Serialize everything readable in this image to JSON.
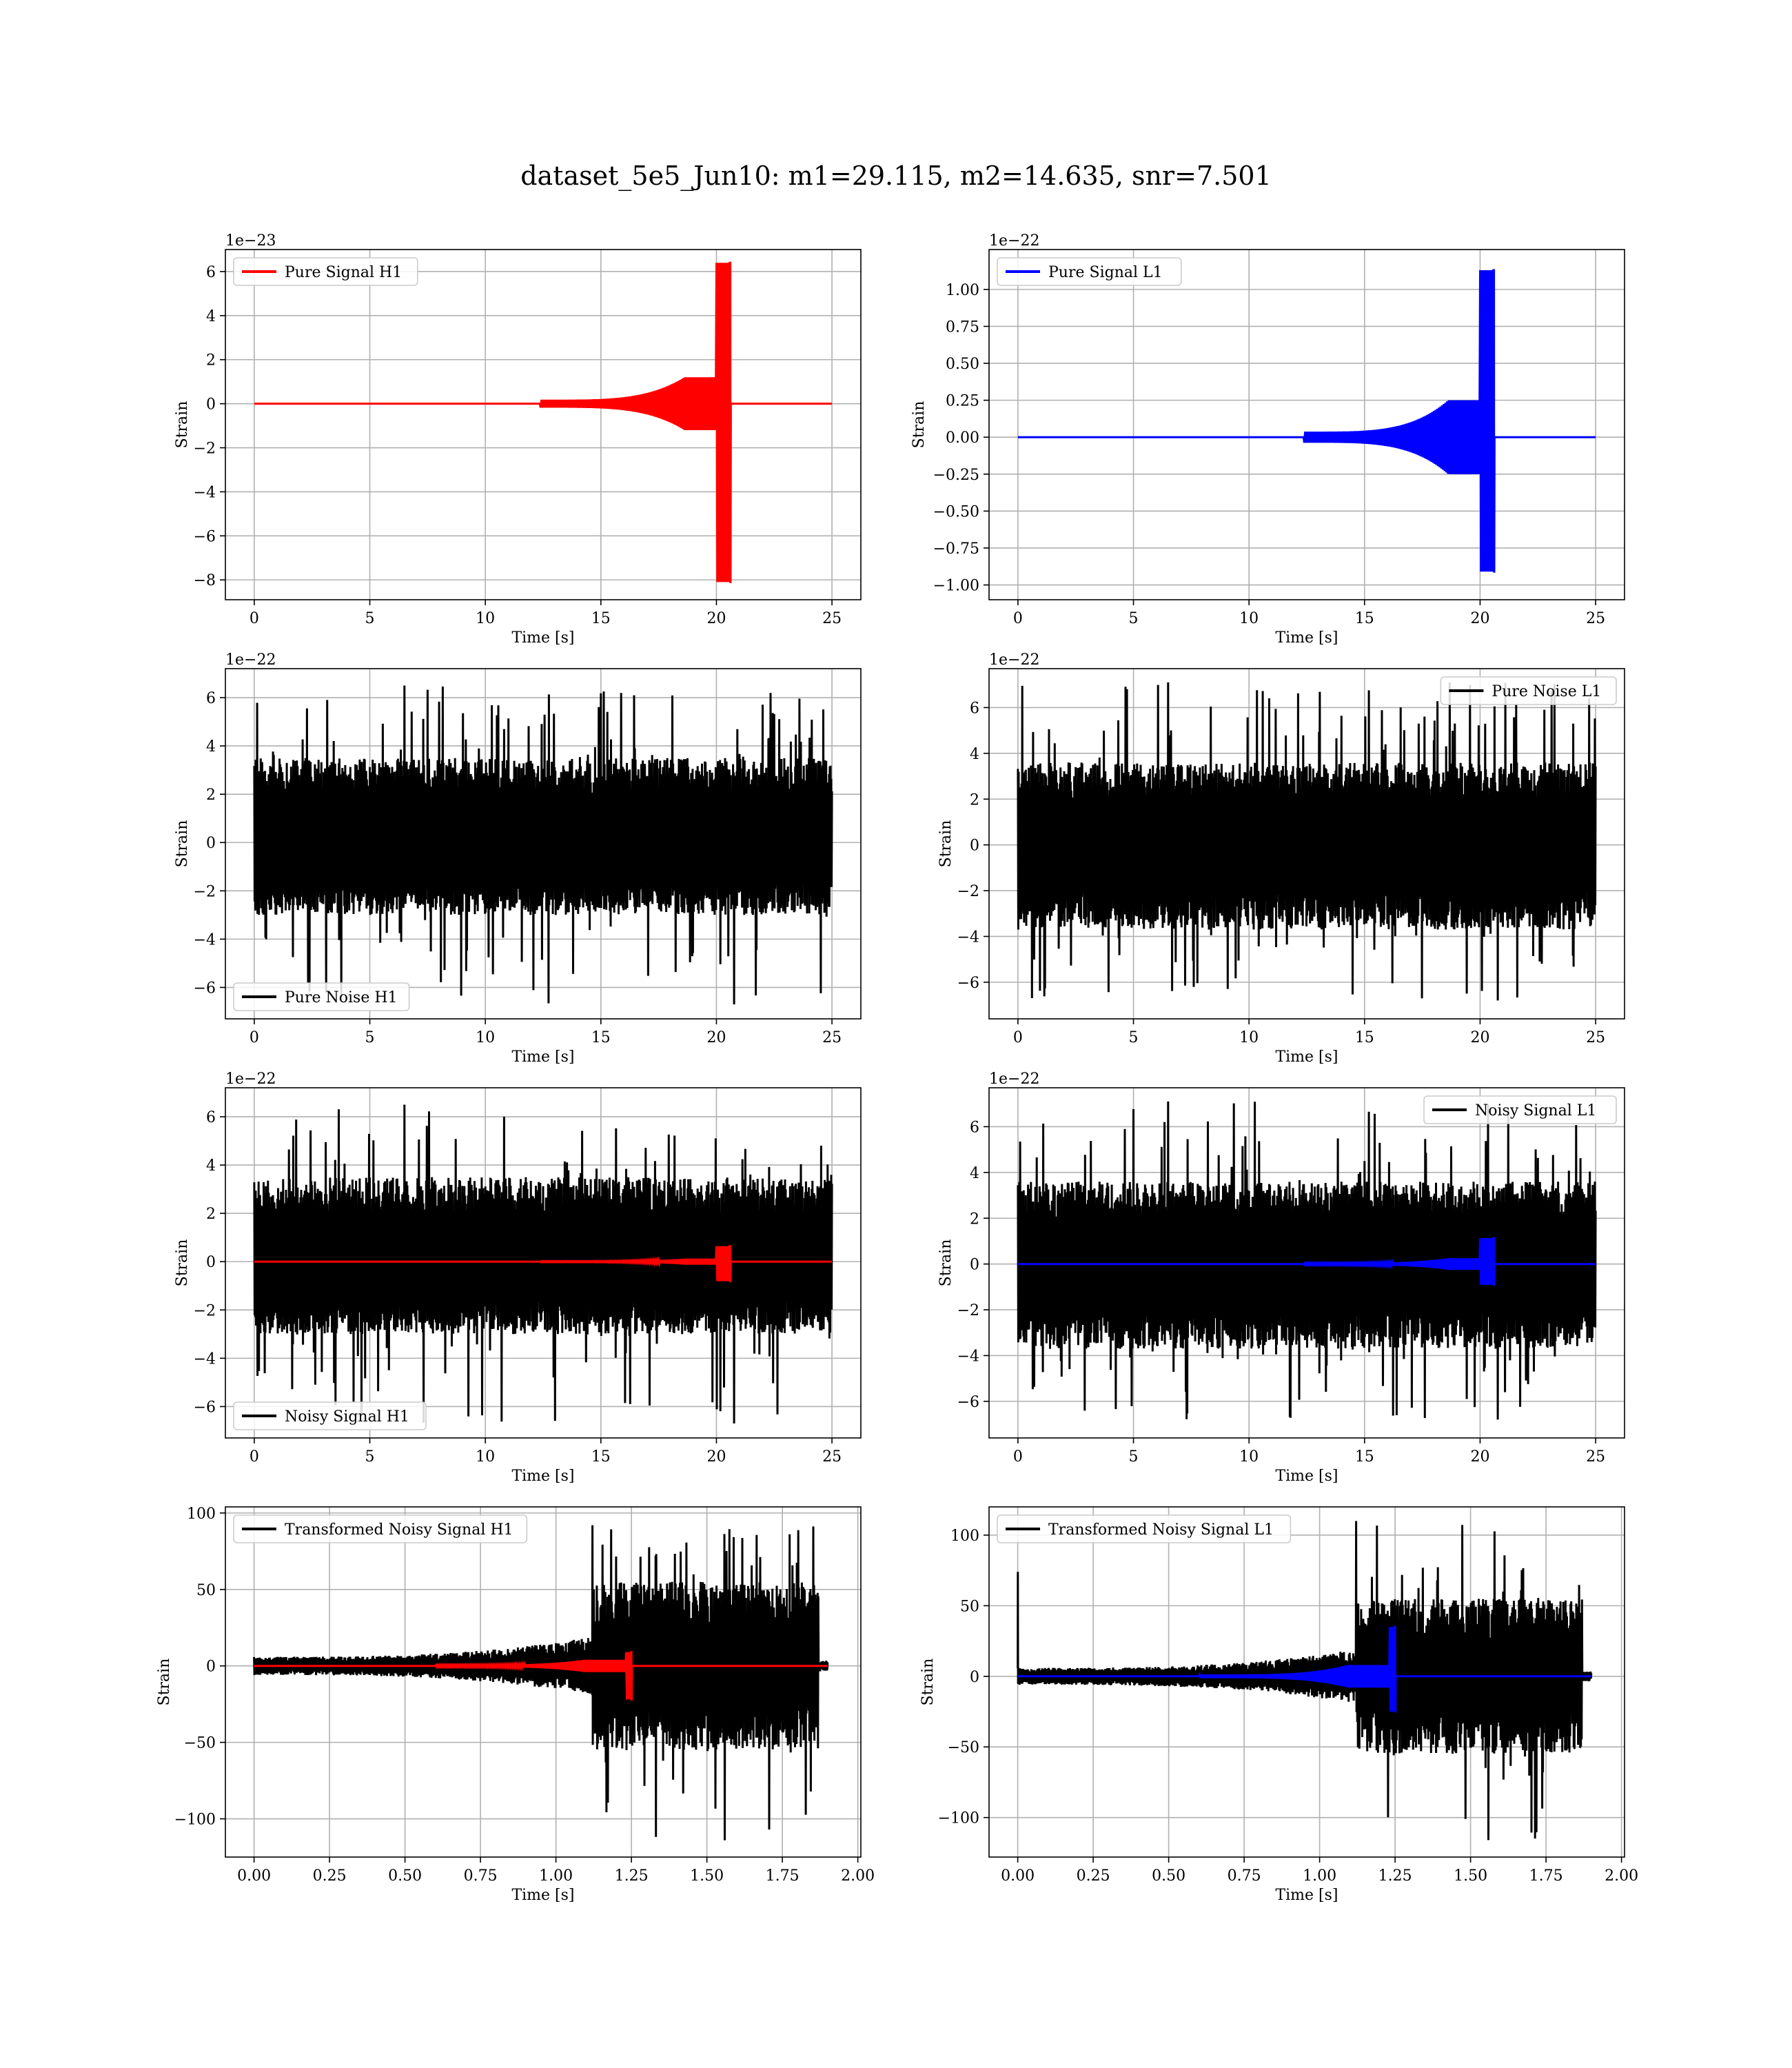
{
  "figure": {
    "title": "dataset_5e5_Jun10: m1=29.115, m2=14.635, snr=7.501"
  },
  "colors": {
    "red": "#ff0000",
    "blue": "#0000ff",
    "black": "#000000",
    "grid": "#b0b0b0"
  },
  "chart_data": [
    {
      "id": "pure-signal-h1",
      "type": "line",
      "xlabel": "Time [s]",
      "ylabel": "Strain",
      "offset_text": "1e−23",
      "xlim": [
        -1.25,
        26.25
      ],
      "ylim": [
        -8.9,
        7.0
      ],
      "xticks": [
        0,
        5,
        10,
        15,
        20,
        25
      ],
      "xtick_labels": [
        "0",
        "5",
        "10",
        "15",
        "20",
        "25"
      ],
      "yticks": [
        -8,
        -6,
        -4,
        -2,
        0,
        2,
        4,
        6
      ],
      "ytick_labels": [
        "−8",
        "−6",
        "−4",
        "−2",
        "0",
        "2",
        "4",
        "6"
      ],
      "grid": true,
      "legend": "top-left",
      "series": [
        {
          "name": "Pure Signal H1",
          "color": "#ff0000",
          "kind": "chirp",
          "x_start": 0,
          "x_end": 25,
          "merger": 20.6,
          "peak_pos": 6.4,
          "peak_neg": -8.1,
          "plateau": 1.2
        }
      ]
    },
    {
      "id": "pure-signal-l1",
      "type": "line",
      "xlabel": "Time [s]",
      "ylabel": "Strain",
      "offset_text": "1e−22",
      "xlim": [
        -1.25,
        26.25
      ],
      "ylim": [
        -1.1,
        1.27
      ],
      "xticks": [
        0,
        5,
        10,
        15,
        20,
        25
      ],
      "xtick_labels": [
        "0",
        "5",
        "10",
        "15",
        "20",
        "25"
      ],
      "yticks": [
        -1.0,
        -0.75,
        -0.5,
        -0.25,
        0.0,
        0.25,
        0.5,
        0.75,
        1.0
      ],
      "ytick_labels": [
        "−1.00",
        "−0.75",
        "−0.50",
        "−0.25",
        "0.00",
        "0.25",
        "0.50",
        "0.75",
        "1.00"
      ],
      "grid": true,
      "legend": "top-left",
      "series": [
        {
          "name": "Pure Signal L1",
          "color": "#0000ff",
          "kind": "chirp",
          "x_start": 0,
          "x_end": 25,
          "merger": 20.6,
          "peak_pos": 1.13,
          "peak_neg": -0.91,
          "plateau": 0.25
        }
      ]
    },
    {
      "id": "pure-noise-h1",
      "type": "line",
      "xlabel": "Time [s]",
      "ylabel": "Strain",
      "offset_text": "1e−22",
      "xlim": [
        -1.25,
        26.25
      ],
      "ylim": [
        -7.3,
        7.2
      ],
      "xticks": [
        0,
        5,
        10,
        15,
        20,
        25
      ],
      "xtick_labels": [
        "0",
        "5",
        "10",
        "15",
        "20",
        "25"
      ],
      "yticks": [
        -6,
        -4,
        -2,
        0,
        2,
        4,
        6
      ],
      "ytick_labels": [
        "−6",
        "−4",
        "−2",
        "0",
        "2",
        "4",
        "6"
      ],
      "grid": true,
      "legend": "bottom-left",
      "series": [
        {
          "name": "Pure Noise H1",
          "color": "#000000",
          "kind": "noise",
          "x_start": 0,
          "x_end": 25,
          "core_pos": 3.5,
          "core_neg": -3.0,
          "spike_max": 6.5,
          "spike_min": -6.7
        }
      ]
    },
    {
      "id": "pure-noise-l1",
      "type": "line",
      "xlabel": "Time [s]",
      "ylabel": "Strain",
      "offset_text": "1e−22",
      "xlim": [
        -1.25,
        26.25
      ],
      "ylim": [
        -7.6,
        7.7
      ],
      "xticks": [
        0,
        5,
        10,
        15,
        20,
        25
      ],
      "xtick_labels": [
        "0",
        "5",
        "10",
        "15",
        "20",
        "25"
      ],
      "yticks": [
        -6,
        -4,
        -2,
        0,
        2,
        4,
        6
      ],
      "ytick_labels": [
        "−6",
        "−4",
        "−2",
        "0",
        "2",
        "4",
        "6"
      ],
      "grid": true,
      "legend": "top-right",
      "series": [
        {
          "name": "Pure Noise L1",
          "color": "#000000",
          "kind": "noise",
          "x_start": 0,
          "x_end": 25,
          "core_pos": 3.6,
          "core_neg": -3.7,
          "spike_max": 7.1,
          "spike_min": -6.8
        }
      ]
    },
    {
      "id": "noisy-signal-h1",
      "type": "line",
      "xlabel": "Time [s]",
      "ylabel": "Strain",
      "offset_text": "1e−22",
      "xlim": [
        -1.25,
        26.25
      ],
      "ylim": [
        -7.3,
        7.2
      ],
      "xticks": [
        0,
        5,
        10,
        15,
        20,
        25
      ],
      "xtick_labels": [
        "0",
        "5",
        "10",
        "15",
        "20",
        "25"
      ],
      "yticks": [
        -6,
        -4,
        -2,
        0,
        2,
        4,
        6
      ],
      "ytick_labels": [
        "−6",
        "−4",
        "−2",
        "0",
        "2",
        "4",
        "6"
      ],
      "grid": true,
      "legend": "bottom-left",
      "series": [
        {
          "name": "Noisy Signal H1",
          "color": "#000000",
          "kind": "noise",
          "x_start": 0,
          "x_end": 25,
          "core_pos": 3.5,
          "core_neg": -3.0,
          "spike_max": 6.5,
          "spike_min": -6.7
        },
        {
          "color": "#ff0000",
          "kind": "chirp",
          "x_start": 0,
          "x_end": 25,
          "merger": 20.6,
          "peak_pos": 0.64,
          "peak_neg": -0.81,
          "plateau": 0.12
        }
      ]
    },
    {
      "id": "noisy-signal-l1",
      "type": "line",
      "xlabel": "Time [s]",
      "ylabel": "Strain",
      "offset_text": "1e−22",
      "xlim": [
        -1.25,
        26.25
      ],
      "ylim": [
        -7.6,
        7.7
      ],
      "xticks": [
        0,
        5,
        10,
        15,
        20,
        25
      ],
      "xtick_labels": [
        "0",
        "5",
        "10",
        "15",
        "20",
        "25"
      ],
      "yticks": [
        -6,
        -4,
        -2,
        0,
        2,
        4,
        6
      ],
      "ytick_labels": [
        "−6",
        "−4",
        "−2",
        "0",
        "2",
        "4",
        "6"
      ],
      "grid": true,
      "legend": "top-right",
      "series": [
        {
          "name": "Noisy Signal L1",
          "color": "#000000",
          "kind": "noise",
          "x_start": 0,
          "x_end": 25,
          "core_pos": 3.6,
          "core_neg": -3.7,
          "spike_max": 7.1,
          "spike_min": -6.8
        },
        {
          "color": "#0000ff",
          "kind": "chirp",
          "x_start": 0,
          "x_end": 25,
          "merger": 20.6,
          "peak_pos": 1.13,
          "peak_neg": -0.91,
          "plateau": 0.25
        }
      ]
    },
    {
      "id": "transformed-noisy-signal-h1",
      "type": "line",
      "xlabel": "Time [s]",
      "ylabel": "Strain",
      "offset_text": "",
      "xlim": [
        -0.095,
        2.01
      ],
      "ylim": [
        -125,
        104
      ],
      "xticks": [
        0.0,
        0.25,
        0.5,
        0.75,
        1.0,
        1.25,
        1.5,
        1.75,
        2.0
      ],
      "xtick_labels": [
        "0.00",
        "0.25",
        "0.50",
        "0.75",
        "1.00",
        "1.25",
        "1.50",
        "1.75",
        "2.00"
      ],
      "yticks": [
        -100,
        -50,
        0,
        50,
        100
      ],
      "ytick_labels": [
        "−100",
        "−50",
        "0",
        "50",
        "100"
      ],
      "grid": true,
      "legend": "top-left",
      "series": [
        {
          "name": "Transformed Noisy Signal H1",
          "color": "#000000",
          "kind": "whitened",
          "x_start": 0,
          "x_end": 1.9,
          "transition": 1.12,
          "end_burst": 1.87,
          "low_amp": 6,
          "high_amp": 55,
          "spike_max": 92,
          "spike_min": -114
        },
        {
          "color": "#ff0000",
          "kind": "chirp",
          "x_start": 0,
          "x_end": 1.9,
          "merger": 1.25,
          "peak_pos": 9,
          "peak_neg": -22,
          "plateau": 4,
          "chirp_start": 0.6
        }
      ]
    },
    {
      "id": "transformed-noisy-signal-l1",
      "type": "line",
      "xlabel": "Time [s]",
      "ylabel": "Strain",
      "offset_text": "",
      "xlim": [
        -0.095,
        2.01
      ],
      "ylim": [
        -128,
        120
      ],
      "xticks": [
        0.0,
        0.25,
        0.5,
        0.75,
        1.0,
        1.25,
        1.5,
        1.75,
        2.0
      ],
      "xtick_labels": [
        "0.00",
        "0.25",
        "0.50",
        "0.75",
        "1.00",
        "1.25",
        "1.50",
        "1.75",
        "2.00"
      ],
      "yticks": [
        -100,
        -50,
        0,
        50,
        100
      ],
      "ytick_labels": [
        "−100",
        "−50",
        "0",
        "50",
        "100"
      ],
      "grid": true,
      "legend": "top-left",
      "series": [
        {
          "name": "Transformed Noisy Signal L1",
          "color": "#000000",
          "kind": "whitened",
          "x_start": 0,
          "x_end": 1.9,
          "transition": 1.12,
          "end_burst": 1.87,
          "low_amp": 6,
          "high_amp": 55,
          "spike_max": 110,
          "spike_min": -116,
          "start_spike": 74
        },
        {
          "color": "#0000ff",
          "kind": "chirp",
          "x_start": 0,
          "x_end": 1.9,
          "merger": 1.25,
          "peak_pos": 35,
          "peak_neg": -25,
          "plateau": 8,
          "chirp_start": 0.6
        }
      ]
    }
  ]
}
